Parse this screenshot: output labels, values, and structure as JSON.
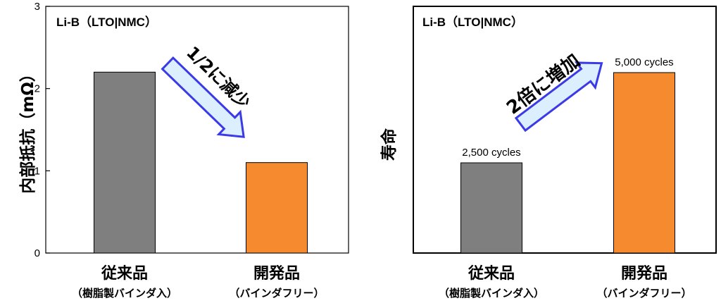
{
  "chart_data": [
    {
      "type": "bar",
      "title": "Li-B（LTO|NMC）",
      "ylabel": "内部抵抗（mΩ）",
      "ylim": [
        0,
        3
      ],
      "yticks": [
        "0",
        "1",
        "2",
        "3"
      ],
      "categories": [
        "従来品",
        "開発品"
      ],
      "category_sublabels": [
        "（樹脂製バインダ入）",
        "（バインダフリー）"
      ],
      "values": [
        2.2,
        1.1
      ],
      "bar_colors": [
        "#7f7f7f",
        "#f58a2e"
      ],
      "annotation": "1/2に減少",
      "grid": false
    },
    {
      "type": "bar",
      "title": "Li-B（LTO|NMC）",
      "ylabel": "寿命",
      "categories": [
        "従来品",
        "開発品"
      ],
      "category_sublabels": [
        "（樹脂製バインダ入）",
        "（バインダフリー）"
      ],
      "values": [
        2500,
        5000
      ],
      "data_labels": [
        "2,500 cycles",
        "5,000 cycles"
      ],
      "bar_colors": [
        "#7f7f7f",
        "#f58a2e"
      ],
      "annotation": "2倍に増加",
      "grid": false
    }
  ],
  "colors": {
    "arrow_fill": "#dcefff",
    "arrow_stroke": "#3a3ae6"
  }
}
